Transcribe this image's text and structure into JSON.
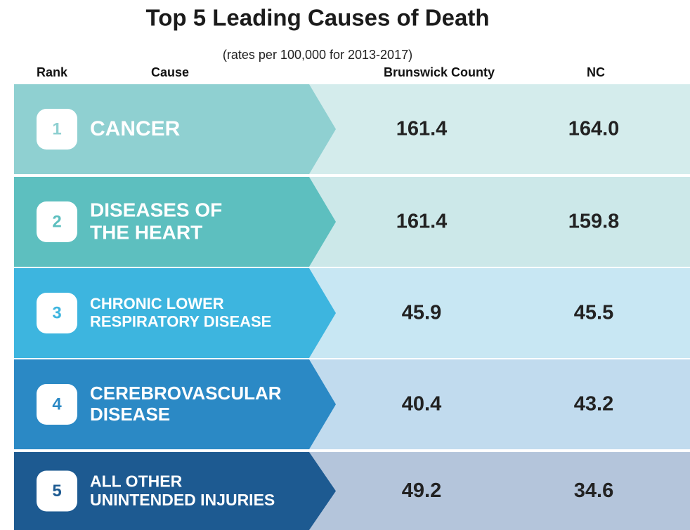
{
  "title": "Top 5 Leading Causes of Death",
  "subtitle": "(rates per 100,000 for 2013-2017)",
  "table": {
    "headers": [
      "Rank",
      "Cause",
      "Brunswick County",
      "NC"
    ],
    "rows": [
      {
        "rank": "1",
        "cause": [
          "CANCER"
        ],
        "county": "161.4",
        "nc": "164.0"
      },
      {
        "rank": "2",
        "cause": [
          "DISEASES OF",
          "THE HEART"
        ],
        "county": "161.4",
        "nc": "159.8"
      },
      {
        "rank": "3",
        "cause": [
          "CHRONIC LOWER",
          "RESPIRATORY DISEASE"
        ],
        "county": "45.9",
        "nc": "45.5"
      },
      {
        "rank": "4",
        "cause": [
          "CEREBROVASCULAR",
          "DISEASE"
        ],
        "county": "40.4",
        "nc": "43.2"
      },
      {
        "rank": "5",
        "cause": [
          "ALL OTHER",
          "UNINTENDED INJURIES"
        ],
        "county": "49.2",
        "nc": "34.6"
      }
    ]
  }
}
